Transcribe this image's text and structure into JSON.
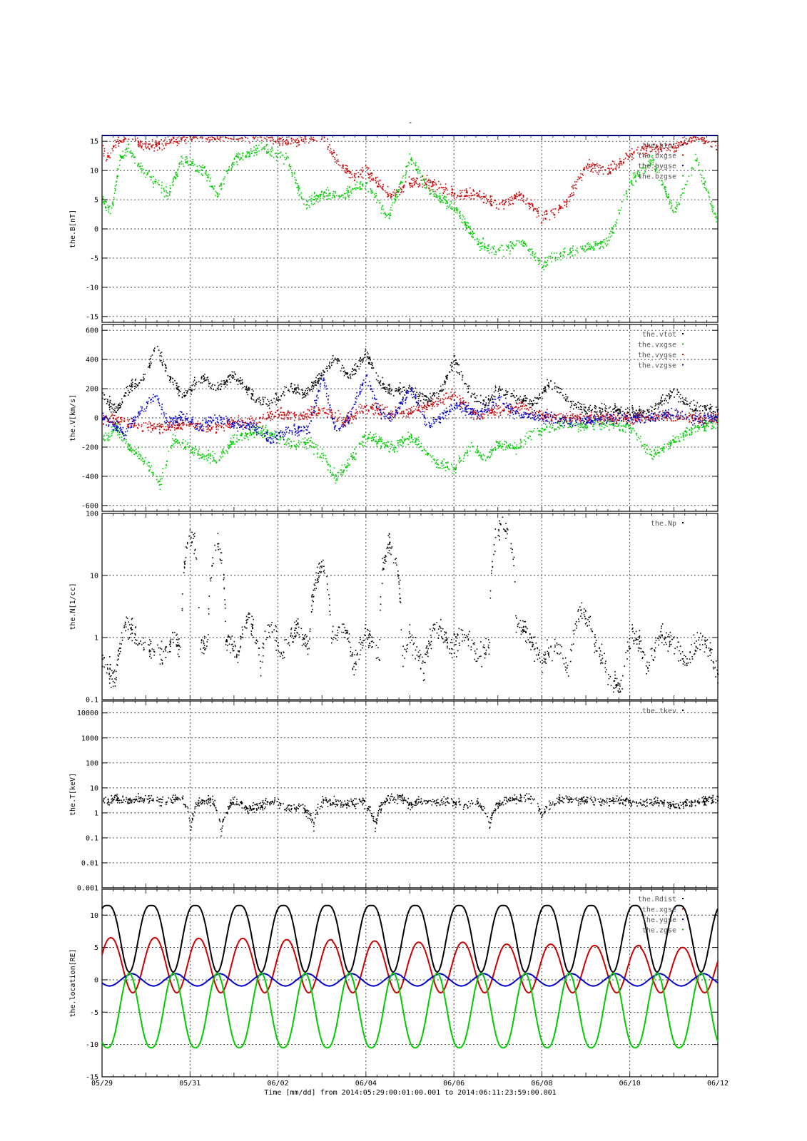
{
  "figure": {
    "title": "-",
    "x_axis": {
      "label": "Time [mm/dd]  from 2014:05:29:00:01:00.001  to  2014:06:11:23:59:00.001",
      "range_days": [
        0,
        14
      ],
      "tick_labels": [
        "05/29",
        "05/31",
        "06/02",
        "06/04",
        "06/06",
        "06/08",
        "06/10",
        "06/12"
      ],
      "tick_days": [
        0,
        2,
        4,
        6,
        8,
        10,
        12,
        14
      ]
    }
  },
  "colors": {
    "black": "#000000",
    "red": "#cc0000",
    "green": "#00cc00",
    "blue": "#0000cc",
    "frame_top": "#000080"
  },
  "chart_data": [
    {
      "type": "scatter",
      "ylabel": "the.B[nT]",
      "ylim": [
        -16,
        16
      ],
      "scale": "linear",
      "yticks": [
        -15,
        -10,
        -5,
        0,
        5,
        10,
        15
      ],
      "grid": true,
      "legend_position": "top-right",
      "series": [
        {
          "name": "the.btot",
          "color": "black"
        },
        {
          "name": "the.bxgse",
          "color": "red",
          "x": [
            0,
            0.1,
            0.3,
            0.6,
            1.0,
            1.5,
            2.0,
            3.6,
            4.3,
            5.0,
            5.3,
            5.7,
            6.0,
            6.5,
            6.8,
            7.0,
            7.5,
            8.0,
            8.5,
            9.0,
            9.5,
            10.0,
            10.5,
            11.0,
            11.5,
            12.0,
            12.5,
            13.0,
            13.5,
            14.0
          ],
          "values": [
            14,
            12,
            15,
            16,
            14,
            15,
            16,
            16,
            15,
            16,
            12,
            9,
            10,
            6,
            7,
            8,
            8,
            6,
            6,
            4,
            6,
            2,
            4,
            11,
            10,
            13,
            14,
            14,
            16,
            14
          ]
        },
        {
          "name": "the.bygse",
          "color": "blue"
        },
        {
          "name": "the.bzgse",
          "color": "green",
          "x": [
            0,
            0.2,
            0.4,
            0.6,
            0.8,
            1.2,
            1.5,
            1.8,
            2.3,
            2.6,
            3.0,
            3.6,
            4.2,
            4.6,
            5.0,
            5.5,
            6.0,
            6.5,
            7.0,
            7.5,
            8.0,
            8.5,
            9.0,
            9.5,
            10.0,
            10.5,
            11.0,
            11.5,
            12.0,
            12.5,
            13.0,
            13.5,
            14.0
          ],
          "values": [
            5,
            3,
            12,
            14,
            11,
            8,
            6,
            12,
            10,
            6,
            12,
            14,
            12,
            4,
            6,
            6,
            8,
            2,
            12,
            6,
            4,
            -2,
            -4,
            -2,
            -6,
            -4,
            -3,
            -2,
            8,
            12,
            3,
            12,
            1
          ]
        }
      ]
    },
    {
      "type": "scatter",
      "ylabel": "the.V[km/s]",
      "ylim": [
        -640,
        640
      ],
      "scale": "linear",
      "yticks": [
        -600,
        -400,
        -200,
        0,
        200,
        400,
        600
      ],
      "grid": true,
      "legend_position": "top-right",
      "series": [
        {
          "name": "the.vtot",
          "color": "black",
          "x": [
            0,
            0.3,
            0.6,
            1.0,
            1.2,
            1.5,
            1.8,
            2.0,
            2.3,
            2.6,
            3.0,
            3.5,
            3.8,
            4.3,
            4.6,
            5.0,
            5.3,
            5.6,
            6.0,
            6.3,
            6.6,
            7.0,
            7.4,
            7.7,
            8.0,
            8.4,
            8.7,
            9.0,
            9.4,
            9.8,
            10.2,
            10.6,
            11.0,
            11.5,
            12.0,
            12.5,
            13.0,
            13.4,
            13.8,
            14.0
          ],
          "values": [
            150,
            60,
            200,
            300,
            500,
            300,
            150,
            200,
            280,
            200,
            300,
            120,
            100,
            220,
            160,
            300,
            420,
            280,
            450,
            250,
            180,
            200,
            120,
            180,
            400,
            150,
            100,
            200,
            150,
            100,
            250,
            120,
            60,
            60,
            40,
            50,
            180,
            80,
            60,
            40
          ]
        },
        {
          "name": "the.vxgse",
          "color": "green",
          "x": [
            0,
            0.3,
            0.6,
            1.0,
            1.3,
            1.6,
            2.0,
            2.3,
            2.6,
            3.0,
            3.5,
            3.8,
            4.3,
            4.7,
            5.0,
            5.3,
            5.6,
            6.0,
            6.3,
            6.6,
            7.0,
            7.3,
            7.6,
            8.0,
            8.4,
            8.7,
            9.0,
            9.4,
            9.8,
            10.2,
            10.6,
            11.0,
            11.5,
            12.0,
            12.5,
            13.0,
            13.5,
            14.0
          ],
          "values": [
            -150,
            -60,
            -200,
            -300,
            -450,
            -150,
            -200,
            -260,
            -280,
            -150,
            -80,
            -100,
            -180,
            -160,
            -250,
            -400,
            -300,
            -120,
            -160,
            -200,
            -130,
            -200,
            -300,
            -350,
            -180,
            -280,
            -180,
            -200,
            -100,
            -60,
            -40,
            -50,
            -40,
            -60,
            -250,
            -150,
            -60,
            -30
          ]
        },
        {
          "name": "the.vygse",
          "color": "red",
          "x": [
            0,
            0.5,
            1.0,
            1.5,
            2.0,
            2.5,
            3.0,
            3.5,
            4.0,
            4.5,
            5.0,
            5.5,
            6.0,
            6.5,
            7.0,
            7.5,
            8.0,
            8.5,
            9.0,
            9.5,
            10.0,
            10.5,
            11.0,
            11.5,
            12.0,
            12.5,
            13.0,
            13.5,
            14.0
          ],
          "values": [
            0,
            -20,
            -60,
            -60,
            -40,
            -80,
            -20,
            -20,
            30,
            20,
            60,
            -20,
            80,
            40,
            40,
            100,
            160,
            20,
            60,
            80,
            20,
            0,
            10,
            0,
            0,
            10,
            20,
            0,
            0
          ]
        },
        {
          "name": "the.vzgse",
          "color": "blue",
          "x": [
            0,
            0.5,
            0.8,
            1.2,
            1.5,
            1.8,
            2.2,
            2.6,
            3.0,
            3.4,
            3.8,
            4.3,
            4.7,
            5.0,
            5.3,
            5.6,
            6.0,
            6.3,
            6.6,
            7.0,
            7.4,
            7.7,
            8.0,
            8.5,
            9.0,
            9.5,
            10.0,
            10.5,
            11.0,
            11.5,
            12.0,
            12.5,
            13.0,
            13.5,
            14.0
          ],
          "values": [
            10,
            -100,
            20,
            150,
            -40,
            20,
            -60,
            0,
            -40,
            -50,
            -150,
            -80,
            -80,
            300,
            -80,
            0,
            300,
            50,
            0,
            200,
            -50,
            0,
            100,
            30,
            120,
            20,
            10,
            -20,
            -10,
            0,
            0,
            10,
            40,
            -10,
            10
          ]
        }
      ]
    },
    {
      "type": "scatter",
      "ylabel": "the.N[1/cc]",
      "ylim": [
        0.1,
        100
      ],
      "scale": "log",
      "yticks": [
        0.1,
        1,
        10,
        100
      ],
      "grid": true,
      "legend_position": "top-right",
      "series": [
        {
          "name": "the.Np",
          "color": "black",
          "x": [
            0,
            0.3,
            0.5,
            1.0,
            1.4,
            1.6,
            1.8,
            2.0,
            2.2,
            2.4,
            2.6,
            2.8,
            3.1,
            3.3,
            3.6,
            3.8,
            4.1,
            4.4,
            4.7,
            5.0,
            5.2,
            5.5,
            5.7,
            6.0,
            6.3,
            6.5,
            6.8,
            7.0,
            7.3,
            7.6,
            7.9,
            8.2,
            8.5,
            8.8,
            9.1,
            9.4,
            9.7,
            10.0,
            10.3,
            10.6,
            10.9,
            11.2,
            11.5,
            11.8,
            12.1,
            12.4,
            12.7,
            13.0,
            13.3,
            13.6,
            14.0
          ],
          "values": [
            0.4,
            0.2,
            1.5,
            0.7,
            0.5,
            1.0,
            0.5,
            50,
            0.8,
            0.7,
            35,
            0.9,
            0.6,
            2.0,
            0.3,
            1.5,
            0.5,
            1.5,
            0.6,
            15,
            1.0,
            1.5,
            0.3,
            1.2,
            0.5,
            35,
            0.5,
            1.0,
            0.3,
            1.5,
            0.6,
            1.2,
            0.5,
            0.7,
            80,
            2.0,
            1.0,
            0.4,
            0.8,
            0.25,
            3.0,
            0.8,
            0.2,
            0.15,
            1.2,
            0.3,
            1.0,
            0.8,
            0.4,
            1.0,
            0.2
          ]
        }
      ]
    },
    {
      "type": "scatter",
      "ylabel": "the.T[keV]",
      "ylim": [
        0.001,
        30000
      ],
      "scale": "log",
      "yticks": [
        0.001,
        0.01,
        0.1,
        1,
        10,
        100,
        1000,
        10000
      ],
      "ytick_labels": [
        "0.001",
        "0.01",
        "0.1",
        "1",
        "10",
        "100",
        "1000",
        "10000"
      ],
      "grid": true,
      "legend_position": "top-right",
      "series": [
        {
          "name": "the.tkev",
          "color": "black",
          "x": [
            0,
            0.3,
            0.6,
            1.0,
            1.4,
            1.8,
            2.0,
            2.2,
            2.5,
            2.7,
            3.0,
            3.3,
            3.6,
            3.9,
            4.2,
            4.5,
            4.8,
            5.0,
            5.3,
            5.6,
            5.9,
            6.2,
            6.5,
            6.8,
            7.0,
            7.3,
            7.6,
            7.9,
            8.2,
            8.5,
            8.8,
            9.1,
            9.4,
            9.7,
            10.0,
            10.3,
            10.6,
            10.9,
            11.2,
            11.5,
            11.8,
            12.1,
            12.4,
            12.7,
            13.0,
            13.3,
            13.6,
            14.0
          ],
          "values": [
            3,
            4,
            3,
            4,
            3,
            4,
            0.1,
            3,
            3,
            0.1,
            3,
            1.5,
            2,
            3,
            1.5,
            2,
            0.3,
            3,
            3,
            2.5,
            3,
            0.2,
            4,
            4,
            2,
            3.5,
            3,
            3,
            2,
            3,
            0.3,
            3,
            4,
            4,
            0.8,
            3,
            3.5,
            3.5,
            3,
            3,
            3.5,
            2.5,
            3,
            3,
            2,
            2.5,
            3,
            4
          ]
        }
      ]
    },
    {
      "type": "line",
      "ylabel": "the.location[RE]",
      "ylim": [
        -15,
        14
      ],
      "scale": "linear",
      "yticks": [
        -15,
        -10,
        -5,
        0,
        5,
        10
      ],
      "grid": true,
      "legend_position": "top-right",
      "orbit_period_days": 1.0,
      "series": [
        {
          "name": "the.Rdist",
          "color": "black",
          "apogee": 11.5,
          "perigee": 1.2
        },
        {
          "name": "the.xgse",
          "color": "red",
          "apogee_values": [
            6.5,
            6.4,
            6.2,
            6.0,
            5.8,
            5.5,
            5.3,
            5.0
          ],
          "min": -2
        },
        {
          "name": "the.ygse",
          "color": "blue",
          "max": 1.0,
          "min": -1.0
        },
        {
          "name": "the.zgse",
          "color": "green",
          "apogee": -10.5,
          "max": 1.0
        }
      ]
    }
  ]
}
